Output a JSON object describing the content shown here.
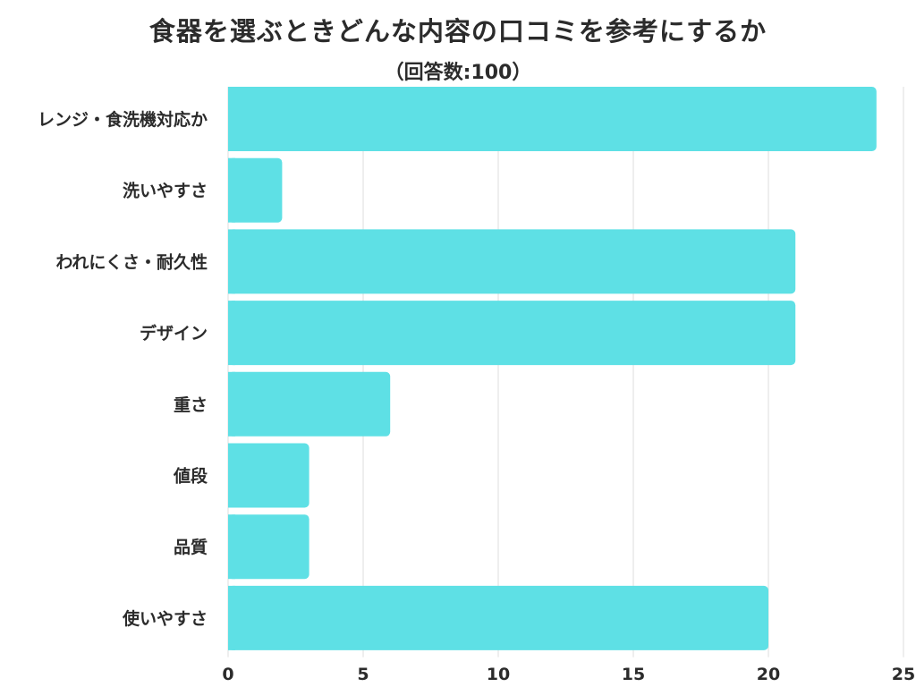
{
  "chart_data": {
    "type": "bar",
    "orientation": "horizontal",
    "title": "食器を選ぶときどんな内容の口コミを参考にするか",
    "subtitle": "（回答数:100）",
    "categories": [
      "レンジ・食洗機対応か",
      "洗いやすさ",
      "われにくさ・耐久性",
      "デザイン",
      "重さ",
      "値段",
      "品質",
      "使いやすさ"
    ],
    "values": [
      24,
      2,
      21,
      21,
      6,
      3,
      3,
      20
    ],
    "xlim": [
      0,
      25
    ],
    "xticks": [
      0,
      5,
      10,
      15,
      20,
      25
    ],
    "grid": true,
    "bar_color": "#5ee0e5",
    "grid_color": "#dddddd"
  }
}
